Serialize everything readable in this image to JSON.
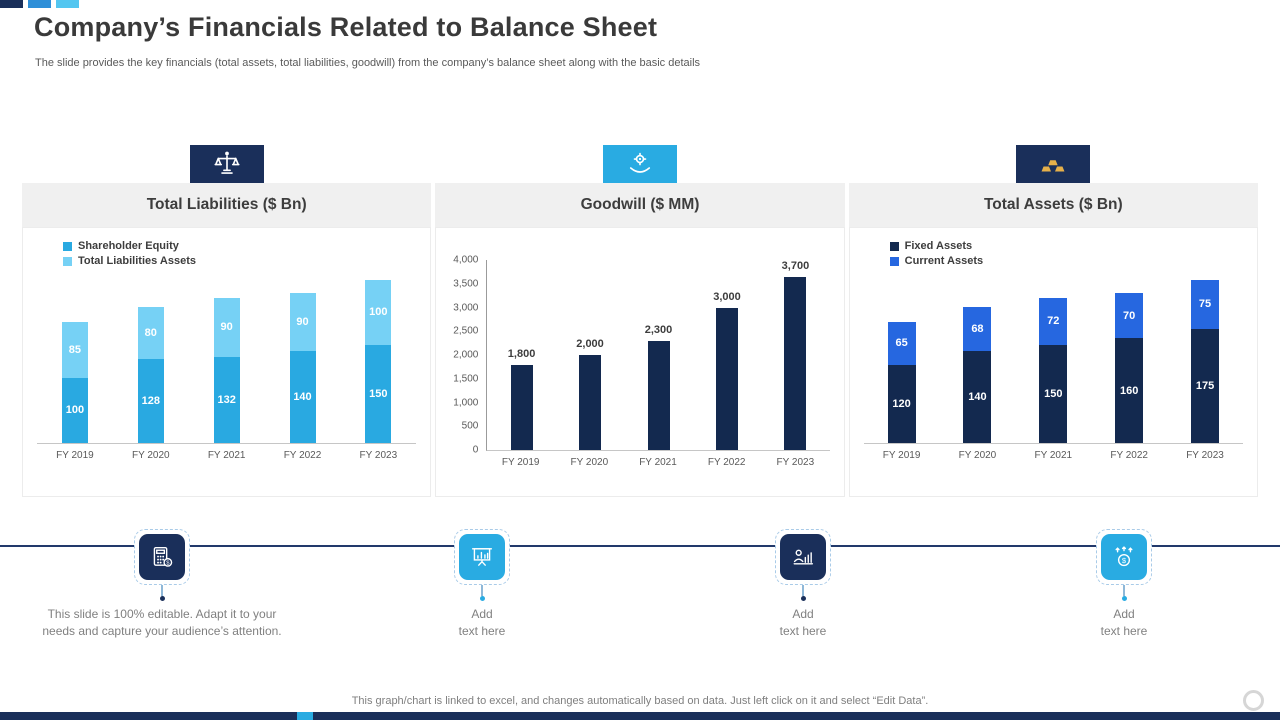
{
  "page": {
    "title": "Company’s Financials Related to Balance Sheet",
    "subtitle": "The slide provides the key financials (total assets, total liabilities, goodwill) from the company’s balance sheet along with the basic details",
    "footer_note": "This graph/chart is linked to excel, and changes automatically based on data. Just left click on it and select “Edit Data”."
  },
  "colors": {
    "navy": "#1a2f5a",
    "bar_navy": "#13294f",
    "bright_blue": "#29a9e1",
    "light_blue": "#76d1f5",
    "royal_blue": "#2667e0",
    "gold": "#e6b04a",
    "panel_header_bg": "#f0f0f0",
    "muted_text": "#7f7f7f"
  },
  "panels": [
    {
      "icon": "justice-scale-icon",
      "icon_bg": "navy"
    },
    {
      "icon": "hand-gear-icon",
      "icon_bg": "bright_blue"
    },
    {
      "icon": "gold-bars-icon",
      "icon_bg": "navy"
    }
  ],
  "chart_data": [
    {
      "type": "bar",
      "stacked": true,
      "title": "Total Liabilities ($ Bn)",
      "categories": [
        "FY 2019",
        "FY 2020",
        "FY 2021",
        "FY 2022",
        "FY 2023"
      ],
      "series": [
        {
          "name": "Shareholder Equity",
          "color": "#29a9e1",
          "values": [
            100,
            128,
            132,
            140,
            150
          ]
        },
        {
          "name": "Total Liabilities Assets",
          "color": "#76d1f5",
          "values": [
            85,
            80,
            90,
            90,
            100
          ]
        }
      ],
      "legend_position": "top-left",
      "ylim": [
        0,
        260
      ],
      "grid": false,
      "data_labels": "inside"
    },
    {
      "type": "bar",
      "stacked": false,
      "title": "Goodwill ($ MM)",
      "categories": [
        "FY 2019",
        "FY 2020",
        "FY 2021",
        "FY 2022",
        "FY 2023"
      ],
      "values": [
        1800,
        2000,
        2300,
        3000,
        3700
      ],
      "color": "#13294f",
      "ylim": [
        0,
        4000
      ],
      "ytick_step": 500,
      "yaxis": true,
      "grid": false,
      "data_labels": "above"
    },
    {
      "type": "bar",
      "stacked": true,
      "title": "Total Assets ($ Bn)",
      "categories": [
        "FY 2019",
        "FY 2020",
        "FY 2021",
        "FY 2022",
        "FY 2023"
      ],
      "series": [
        {
          "name": "Fixed Assets",
          "color": "#13294f",
          "values": [
            120,
            140,
            150,
            160,
            175
          ]
        },
        {
          "name": "Current Assets",
          "color": "#2667e0",
          "values": [
            65,
            68,
            72,
            70,
            75
          ]
        }
      ],
      "legend_position": "top-left",
      "ylim": [
        0,
        260
      ],
      "grid": false,
      "data_labels": "inside"
    }
  ],
  "callouts": [
    {
      "icon": "calculator-icon",
      "color": "navy",
      "text": "This slide is 100% editable. Adapt it to your needs and capture your audience’s attention."
    },
    {
      "icon": "presentation-chart-icon",
      "color": "blue",
      "text": "Add\ntext here"
    },
    {
      "icon": "person-chart-icon",
      "color": "navy",
      "text": "Add\ntext here"
    },
    {
      "icon": "dollar-rise-icon",
      "color": "blue",
      "text": "Add\ntext here"
    }
  ]
}
